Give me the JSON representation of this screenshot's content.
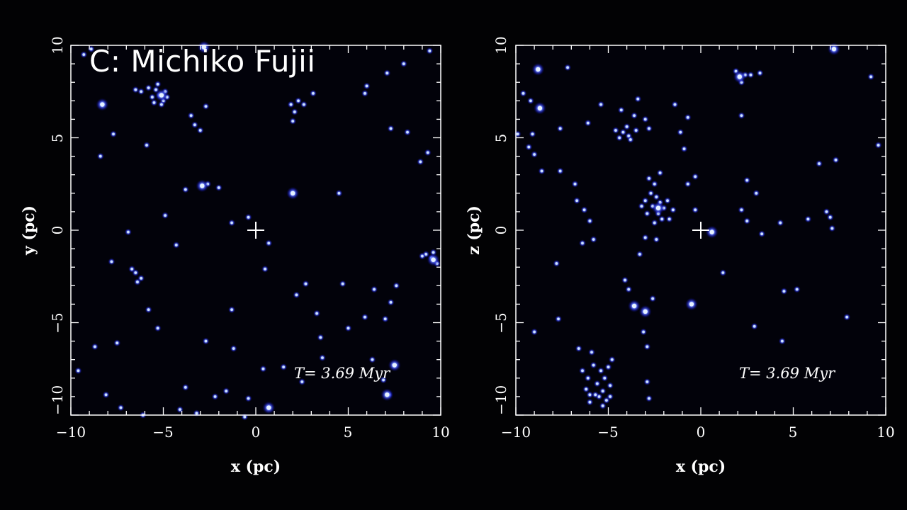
{
  "credit": "C: Michiko Fujii",
  "colors": {
    "background": "#02020a",
    "star_core": "#bfe0ff",
    "star_glow": "#2a32ff",
    "axis": "#ffffff"
  },
  "chart_data": [
    {
      "type": "scatter",
      "name": "x-y projection",
      "xlabel": "x (pc)",
      "ylabel": "y (pc)",
      "xlim": [
        -10,
        10
      ],
      "ylim": [
        -10,
        10
      ],
      "xticks": [
        "−10",
        "−5",
        "0",
        "5",
        "10"
      ],
      "yticks": [
        "−10",
        "−5",
        "0",
        "5",
        "10"
      ],
      "annotation": "T= 3.69  Myr",
      "center_marker": [
        0,
        0
      ],
      "points": [
        [
          -5.2,
          7.3
        ],
        [
          -5.0,
          7.0
        ],
        [
          -5.4,
          7.6
        ],
        [
          -4.9,
          7.5
        ],
        [
          -5.6,
          7.2
        ],
        [
          -5.1,
          6.8
        ],
        [
          -5.8,
          7.7
        ],
        [
          -4.8,
          7.2
        ],
        [
          -5.3,
          7.9
        ],
        [
          -6.2,
          7.5
        ],
        [
          -6.5,
          7.6
        ],
        [
          -5.5,
          6.9
        ],
        [
          -8.3,
          6.8
        ],
        [
          -9.3,
          9.5
        ],
        [
          -8.9,
          9.8
        ],
        [
          -7.7,
          5.2
        ],
        [
          -8.4,
          4.0
        ],
        [
          -5.9,
          4.6
        ],
        [
          -3.5,
          6.2
        ],
        [
          -3.3,
          5.7
        ],
        [
          -3.0,
          5.4
        ],
        [
          -2.7,
          6.7
        ],
        [
          -2.8,
          9.9
        ],
        [
          -3.8,
          2.2
        ],
        [
          -2.9,
          2.4
        ],
        [
          -2.6,
          2.5
        ],
        [
          -2.0,
          2.3
        ],
        [
          2.0,
          2.0
        ],
        [
          4.5,
          2.0
        ],
        [
          2.3,
          7.0
        ],
        [
          2.1,
          6.4
        ],
        [
          2.6,
          6.8
        ],
        [
          2.0,
          5.9
        ],
        [
          3.1,
          7.4
        ],
        [
          1.9,
          6.8
        ],
        [
          6.0,
          7.8
        ],
        [
          5.9,
          7.4
        ],
        [
          7.1,
          8.5
        ],
        [
          8.0,
          9.0
        ],
        [
          9.4,
          9.7
        ],
        [
          7.3,
          5.5
        ],
        [
          8.2,
          5.3
        ],
        [
          9.3,
          4.2
        ],
        [
          8.9,
          3.7
        ],
        [
          -4.9,
          0.8
        ],
        [
          -4.3,
          -0.8
        ],
        [
          -1.3,
          0.4
        ],
        [
          -0.4,
          0.7
        ],
        [
          0.7,
          -0.7
        ],
        [
          0.5,
          -2.1
        ],
        [
          -6.9,
          -0.1
        ],
        [
          -7.8,
          -1.7
        ],
        [
          -6.7,
          -2.1
        ],
        [
          -6.5,
          -2.3
        ],
        [
          -6.2,
          -2.6
        ],
        [
          -6.4,
          -2.8
        ],
        [
          -5.8,
          -4.3
        ],
        [
          -5.3,
          -5.3
        ],
        [
          -7.5,
          -6.1
        ],
        [
          -8.7,
          -6.3
        ],
        [
          -8.1,
          -8.9
        ],
        [
          -7.3,
          -9.6
        ],
        [
          -9.6,
          -7.6
        ],
        [
          -6.1,
          -10.0
        ],
        [
          -3.8,
          -8.5
        ],
        [
          -2.7,
          -6.0
        ],
        [
          -2.2,
          -9.0
        ],
        [
          -1.2,
          -6.4
        ],
        [
          -1.3,
          -4.3
        ],
        [
          -1.6,
          -8.7
        ],
        [
          -0.4,
          -9.1
        ],
        [
          -3.2,
          -9.9
        ],
        [
          -4.1,
          -9.7
        ],
        [
          0.4,
          -7.5
        ],
        [
          0.7,
          -9.6
        ],
        [
          1.5,
          -7.4
        ],
        [
          2.2,
          -3.5
        ],
        [
          2.7,
          -2.9
        ],
        [
          3.3,
          -4.5
        ],
        [
          3.5,
          -5.8
        ],
        [
          3.6,
          -6.9
        ],
        [
          5.0,
          -5.3
        ],
        [
          4.7,
          -2.9
        ],
        [
          5.9,
          -4.7
        ],
        [
          6.4,
          -3.2
        ],
        [
          7.0,
          -4.8
        ],
        [
          7.3,
          -3.9
        ],
        [
          7.6,
          -3.0
        ],
        [
          6.3,
          -7.0
        ],
        [
          6.9,
          -8.1
        ],
        [
          7.2,
          -8.9
        ],
        [
          7.5,
          -7.3
        ],
        [
          2.5,
          -8.2
        ],
        [
          -0.6,
          -10.1
        ],
        [
          9.2,
          -1.3
        ],
        [
          9.5,
          -1.5
        ],
        [
          9.8,
          -1.8
        ],
        [
          9.6,
          -1.2
        ],
        [
          9.0,
          -1.4
        ]
      ],
      "bright_points": [
        [
          -5.1,
          7.3
        ],
        [
          -8.3,
          6.8
        ],
        [
          2.0,
          2.0
        ],
        [
          7.1,
          -8.9
        ],
        [
          0.7,
          -9.6
        ],
        [
          -2.8,
          9.9
        ],
        [
          9.6,
          -1.6
        ],
        [
          7.5,
          -7.3
        ],
        [
          -2.9,
          2.4
        ]
      ]
    },
    {
      "type": "scatter",
      "name": "x-z projection",
      "xlabel": "x (pc)",
      "ylabel": "z (pc)",
      "xlim": [
        -10,
        10
      ],
      "ylim": [
        -10,
        10
      ],
      "xticks": [
        "−10",
        "−5",
        "0",
        "5",
        "10"
      ],
      "yticks": [
        "−10",
        "−5",
        "0",
        "5",
        "10"
      ],
      "annotation": "T= 3.69  Myr",
      "center_marker": [
        0,
        0
      ],
      "points": [
        [
          -4.2,
          5.3
        ],
        [
          -3.9,
          5.1
        ],
        [
          -4.4,
          5.0
        ],
        [
          -4.0,
          5.6
        ],
        [
          -3.5,
          5.4
        ],
        [
          -3.8,
          4.9
        ],
        [
          -4.6,
          5.4
        ],
        [
          -3.6,
          6.2
        ],
        [
          -4.3,
          6.5
        ],
        [
          -3.4,
          7.1
        ],
        [
          -3.0,
          6.0
        ],
        [
          -2.8,
          5.5
        ],
        [
          -2.4,
          1.8
        ],
        [
          -2.2,
          1.5
        ],
        [
          -2.6,
          1.3
        ],
        [
          -2.0,
          1.2
        ],
        [
          -2.3,
          0.9
        ],
        [
          -1.8,
          1.6
        ],
        [
          -2.7,
          2.0
        ],
        [
          -3.0,
          1.6
        ],
        [
          -2.5,
          2.5
        ],
        [
          -2.2,
          3.1
        ],
        [
          -1.5,
          1.1
        ],
        [
          -2.9,
          0.9
        ],
        [
          -3.2,
          1.3
        ],
        [
          -2.1,
          0.6
        ],
        [
          -1.7,
          0.6
        ],
        [
          -2.8,
          2.8
        ],
        [
          -2.5,
          0.4
        ],
        [
          -3.0,
          -0.4
        ],
        [
          -2.4,
          -0.5
        ],
        [
          -5.4,
          -7.6
        ],
        [
          -5.2,
          -8.0
        ],
        [
          -5.6,
          -8.3
        ],
        [
          -5.0,
          -7.4
        ],
        [
          -5.3,
          -8.7
        ],
        [
          -5.8,
          -7.3
        ],
        [
          -5.5,
          -9.0
        ],
        [
          -6.1,
          -8.0
        ],
        [
          -6.4,
          -7.6
        ],
        [
          -4.9,
          -8.4
        ],
        [
          -5.7,
          -8.9
        ],
        [
          -5.1,
          -9.2
        ],
        [
          -6.0,
          -9.3
        ],
        [
          -4.8,
          -7.0
        ],
        [
          -6.2,
          -8.6
        ],
        [
          -5.9,
          -6.6
        ],
        [
          -6.6,
          -6.4
        ],
        [
          -5.3,
          -9.5
        ],
        [
          -4.9,
          -9.0
        ],
        [
          2.1,
          8.3
        ],
        [
          1.9,
          8.6
        ],
        [
          2.4,
          8.4
        ],
        [
          2.2,
          8.0
        ],
        [
          2.7,
          8.4
        ],
        [
          3.2,
          8.5
        ],
        [
          -8.8,
          8.7
        ],
        [
          -8.7,
          6.6
        ],
        [
          -9.2,
          7.0
        ],
        [
          -9.6,
          7.4
        ],
        [
          -7.2,
          8.8
        ],
        [
          -9.1,
          5.2
        ],
        [
          -9.3,
          4.5
        ],
        [
          -9.0,
          4.1
        ],
        [
          -8.6,
          3.2
        ],
        [
          -7.6,
          3.2
        ],
        [
          -7.6,
          5.5
        ],
        [
          -5.4,
          6.8
        ],
        [
          -6.1,
          5.8
        ],
        [
          -6.8,
          2.5
        ],
        [
          -6.7,
          1.6
        ],
        [
          -6.3,
          1.1
        ],
        [
          -6.0,
          0.5
        ],
        [
          -6.4,
          -0.7
        ],
        [
          -5.8,
          -0.5
        ],
        [
          -7.8,
          -1.8
        ],
        [
          -9.0,
          -5.5
        ],
        [
          -7.7,
          -4.8
        ],
        [
          -6.0,
          -8.9
        ],
        [
          -4.1,
          -2.7
        ],
        [
          -3.6,
          -4.1
        ],
        [
          -3.0,
          -4.4
        ],
        [
          -3.3,
          -1.3
        ],
        [
          -2.9,
          -6.3
        ],
        [
          -2.9,
          -8.2
        ],
        [
          -2.8,
          -9.1
        ],
        [
          -2.6,
          -3.7
        ],
        [
          -3.9,
          -3.2
        ],
        [
          -3.1,
          -5.5
        ],
        [
          -0.5,
          -4.0
        ],
        [
          -0.7,
          2.5
        ],
        [
          -0.3,
          2.9
        ],
        [
          -1.1,
          5.3
        ],
        [
          -0.7,
          6.1
        ],
        [
          -1.4,
          6.8
        ],
        [
          -0.9,
          4.4
        ],
        [
          -0.3,
          1.1
        ],
        [
          0.6,
          -0.1
        ],
        [
          1.2,
          -2.3
        ],
        [
          2.2,
          6.2
        ],
        [
          2.5,
          2.7
        ],
        [
          3.0,
          2.0
        ],
        [
          2.2,
          1.1
        ],
        [
          2.5,
          0.5
        ],
        [
          3.3,
          -0.2
        ],
        [
          2.9,
          -5.2
        ],
        [
          4.3,
          0.4
        ],
        [
          4.5,
          -3.3
        ],
        [
          4.4,
          -6.0
        ],
        [
          5.2,
          -3.2
        ],
        [
          6.8,
          1.0
        ],
        [
          7.0,
          0.7
        ],
        [
          7.1,
          0.1
        ],
        [
          5.8,
          0.6
        ],
        [
          6.4,
          3.6
        ],
        [
          7.3,
          3.8
        ],
        [
          7.9,
          -4.7
        ],
        [
          7.2,
          9.8
        ],
        [
          9.2,
          8.3
        ],
        [
          9.6,
          4.6
        ],
        [
          -9.9,
          5.2
        ]
      ],
      "bright_points": [
        [
          -8.8,
          8.7
        ],
        [
          -8.7,
          6.6
        ],
        [
          7.2,
          9.8
        ],
        [
          0.6,
          -0.1
        ],
        [
          -3.6,
          -4.1
        ],
        [
          -3.0,
          -4.4
        ],
        [
          -0.5,
          -4.0
        ],
        [
          2.1,
          8.3
        ],
        [
          -2.3,
          1.2
        ]
      ]
    }
  ]
}
